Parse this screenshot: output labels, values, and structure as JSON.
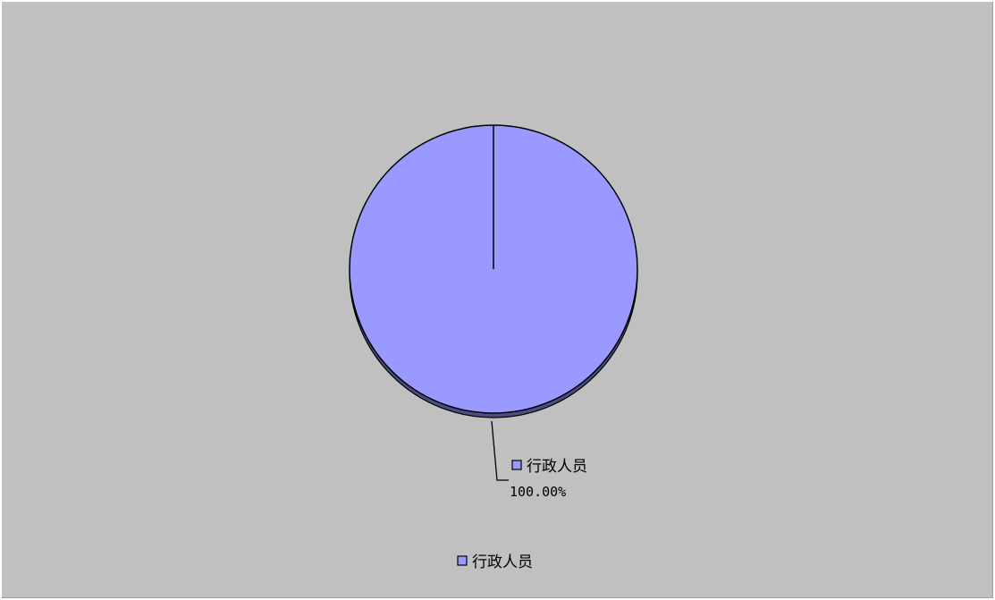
{
  "chart_data": {
    "type": "pie",
    "title": "",
    "categories": [
      "行政人员"
    ],
    "values": [
      100.0
    ],
    "data_labels": [
      {
        "category": "行政人员",
        "percent_text": "100.00%"
      }
    ],
    "legend": {
      "placement": "bottom",
      "entries": [
        "行政人员"
      ]
    },
    "colors": {
      "slice": "#9999ff",
      "slice_shadow": "#4d4d80",
      "background": "#c0c0c0",
      "outline": "#000000"
    }
  }
}
